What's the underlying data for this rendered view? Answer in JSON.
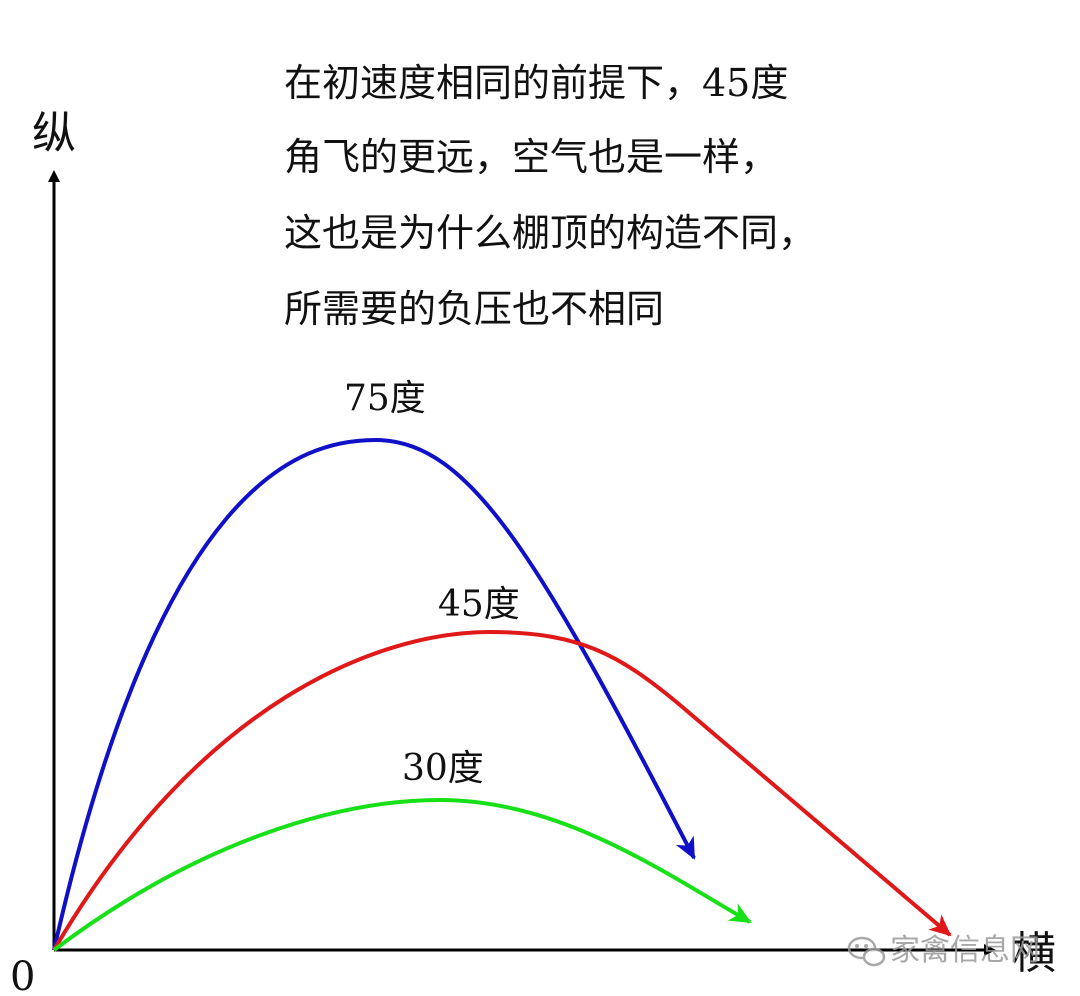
{
  "note": {
    "lines": [
      "在初速度相同的前提下，45度",
      "角飞的更远，空气也是一样，",
      "这也是为什么棚顶的构造不同，",
      "所需要的负压也不相同"
    ]
  },
  "axes": {
    "y_label": "纵",
    "x_label": "横",
    "origin_label": "0",
    "color": "#000000"
  },
  "curves": [
    {
      "label": "75度",
      "color": "#1010c8",
      "icon": "arrow-head"
    },
    {
      "label": "45度",
      "color": "#e01818",
      "icon": "arrow-head"
    },
    {
      "label": "30度",
      "color": "#18e018",
      "icon": "arrow-head"
    }
  ],
  "watermark": {
    "text": "家禽信息网",
    "icon": "wechat-icon"
  }
}
